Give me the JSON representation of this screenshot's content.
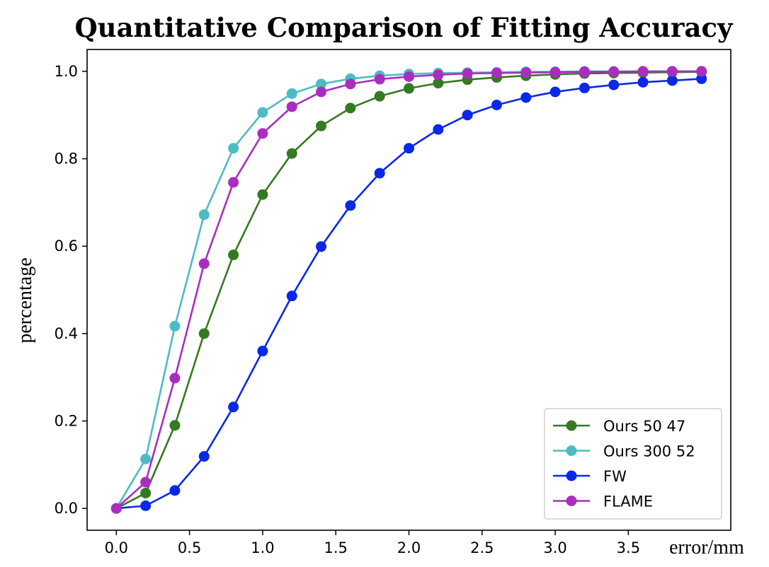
{
  "chart_data": {
    "type": "line",
    "title": "Quantitative Comparison of Fitting Accuracy",
    "xlabel": "error/mm",
    "ylabel": "percentage",
    "xlim": [
      -0.2,
      4.2
    ],
    "ylim": [
      -0.05,
      1.05
    ],
    "xticks": [
      0.0,
      0.5,
      1.0,
      1.5,
      2.0,
      2.5,
      3.0,
      3.5
    ],
    "xtick_labels": [
      "0.0",
      "0.5",
      "1.0",
      "1.5",
      "2.0",
      "2.5",
      "3.0",
      "3.5"
    ],
    "yticks": [
      0.0,
      0.2,
      0.4,
      0.6,
      0.8,
      1.0
    ],
    "ytick_labels": [
      "0.0",
      "0.2",
      "0.4",
      "0.6",
      "0.8",
      "1.0"
    ],
    "grid": false,
    "legend_position": "lower-right",
    "x": [
      0.0,
      0.2,
      0.4,
      0.6,
      0.8,
      1.0,
      1.2,
      1.4,
      1.6,
      1.8,
      2.0,
      2.2,
      2.4,
      2.6,
      2.8,
      3.0,
      3.2,
      3.4,
      3.6,
      3.8,
      4.0
    ],
    "series": [
      {
        "name": "Ours 50 47",
        "color": "#357a22",
        "values": [
          0.0,
          0.035,
          0.19,
          0.4,
          0.58,
          0.718,
          0.812,
          0.875,
          0.916,
          0.943,
          0.961,
          0.973,
          0.981,
          0.986,
          0.99,
          0.993,
          0.995,
          0.996,
          0.997,
          0.998,
          0.999
        ]
      },
      {
        "name": "Ours 300 52",
        "color": "#4cbcc4",
        "values": [
          0.0,
          0.113,
          0.417,
          0.672,
          0.824,
          0.906,
          0.949,
          0.971,
          0.983,
          0.99,
          0.994,
          0.996,
          0.997,
          0.998,
          0.999,
          0.999,
          1.0,
          1.0,
          1.0,
          1.0,
          1.0
        ]
      },
      {
        "name": "FW",
        "color": "#0a28e8",
        "values": [
          0.0,
          0.006,
          0.041,
          0.119,
          0.232,
          0.36,
          0.486,
          0.599,
          0.693,
          0.767,
          0.824,
          0.867,
          0.9,
          0.923,
          0.94,
          0.953,
          0.962,
          0.969,
          0.975,
          0.979,
          0.983
        ]
      },
      {
        "name": "FLAME",
        "color": "#ab2dbf",
        "values": [
          0.0,
          0.06,
          0.298,
          0.56,
          0.746,
          0.858,
          0.919,
          0.953,
          0.971,
          0.982,
          0.988,
          0.992,
          0.995,
          0.996,
          0.997,
          0.998,
          0.999,
          0.999,
          1.0,
          1.0,
          1.0
        ]
      }
    ]
  }
}
